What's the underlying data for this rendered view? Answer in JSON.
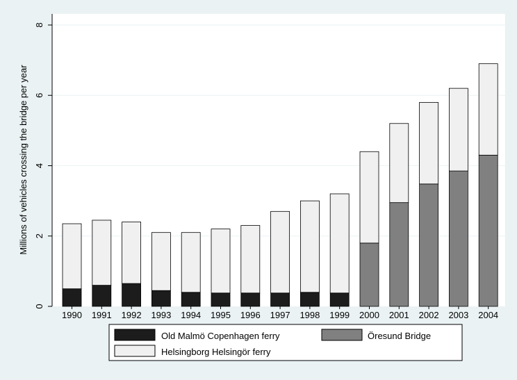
{
  "chart_data": {
    "type": "bar",
    "stacked": true,
    "title": "",
    "xlabel": "",
    "ylabel": "Millions of vehicles crossing the bridge per year",
    "ylim": [
      0,
      8
    ],
    "yticks": [
      0,
      2,
      4,
      6,
      8
    ],
    "grid": true,
    "legend_position": "bottom",
    "categories": [
      "1990",
      "1991",
      "1992",
      "1993",
      "1994",
      "1995",
      "1996",
      "1997",
      "1998",
      "1999",
      "2000",
      "2001",
      "2002",
      "2003",
      "2004"
    ],
    "series": [
      {
        "name": "Old Malmö Copenhagen ferry",
        "color": "#1c1c1c",
        "values": [
          0.5,
          0.6,
          0.65,
          0.45,
          0.4,
          0.38,
          0.38,
          0.38,
          0.4,
          0.38,
          null,
          null,
          null,
          null,
          null
        ]
      },
      {
        "name": "Öresund Bridge",
        "color": "#808080",
        "values": [
          null,
          null,
          null,
          null,
          null,
          null,
          null,
          null,
          null,
          null,
          1.8,
          2.95,
          3.48,
          3.85,
          4.3
        ]
      },
      {
        "name": "Helsingborg Helsingör ferry",
        "color": "#f0f0f0",
        "values": [
          1.85,
          1.85,
          1.75,
          1.65,
          1.7,
          1.82,
          1.92,
          2.32,
          2.6,
          2.82,
          2.6,
          2.25,
          2.32,
          2.35,
          2.6
        ]
      }
    ],
    "legend_order": [
      0,
      1,
      2
    ]
  }
}
